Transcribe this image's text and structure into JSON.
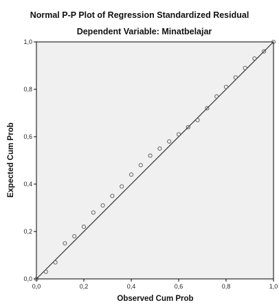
{
  "chart_data": {
    "type": "scatter",
    "title": "Normal P-P Plot of Regression Standardized Residual",
    "subtitle": "Dependent Variable: Minatbelajar",
    "xlabel": "Observed Cum Prob",
    "ylabel": "Expected Cum Prob",
    "xlim": [
      0,
      1
    ],
    "ylim": [
      0,
      1
    ],
    "x_ticks": [
      "0,0",
      "0,2",
      "0,4",
      "0,6",
      "0,8",
      "1,0"
    ],
    "y_ticks": [
      "0,0",
      "0,2",
      "0,4",
      "0,6",
      "0,8",
      "1,0"
    ],
    "reference_line": [
      [
        0,
        0
      ],
      [
        1,
        1
      ]
    ],
    "grid": false,
    "colors": {
      "plot_background": "#f0f0f0",
      "marker_edge": "#555555",
      "line": "#333333"
    },
    "points": [
      [
        0.0,
        0.0
      ],
      [
        0.04,
        0.03
      ],
      [
        0.08,
        0.07
      ],
      [
        0.12,
        0.15
      ],
      [
        0.16,
        0.18
      ],
      [
        0.2,
        0.22
      ],
      [
        0.24,
        0.28
      ],
      [
        0.28,
        0.31
      ],
      [
        0.32,
        0.35
      ],
      [
        0.36,
        0.39
      ],
      [
        0.4,
        0.44
      ],
      [
        0.44,
        0.48
      ],
      [
        0.48,
        0.52
      ],
      [
        0.52,
        0.55
      ],
      [
        0.56,
        0.58
      ],
      [
        0.6,
        0.61
      ],
      [
        0.64,
        0.64
      ],
      [
        0.68,
        0.67
      ],
      [
        0.72,
        0.72
      ],
      [
        0.76,
        0.77
      ],
      [
        0.8,
        0.81
      ],
      [
        0.84,
        0.85
      ],
      [
        0.88,
        0.89
      ],
      [
        0.92,
        0.93
      ],
      [
        0.96,
        0.96
      ],
      [
        1.0,
        1.0
      ]
    ]
  }
}
